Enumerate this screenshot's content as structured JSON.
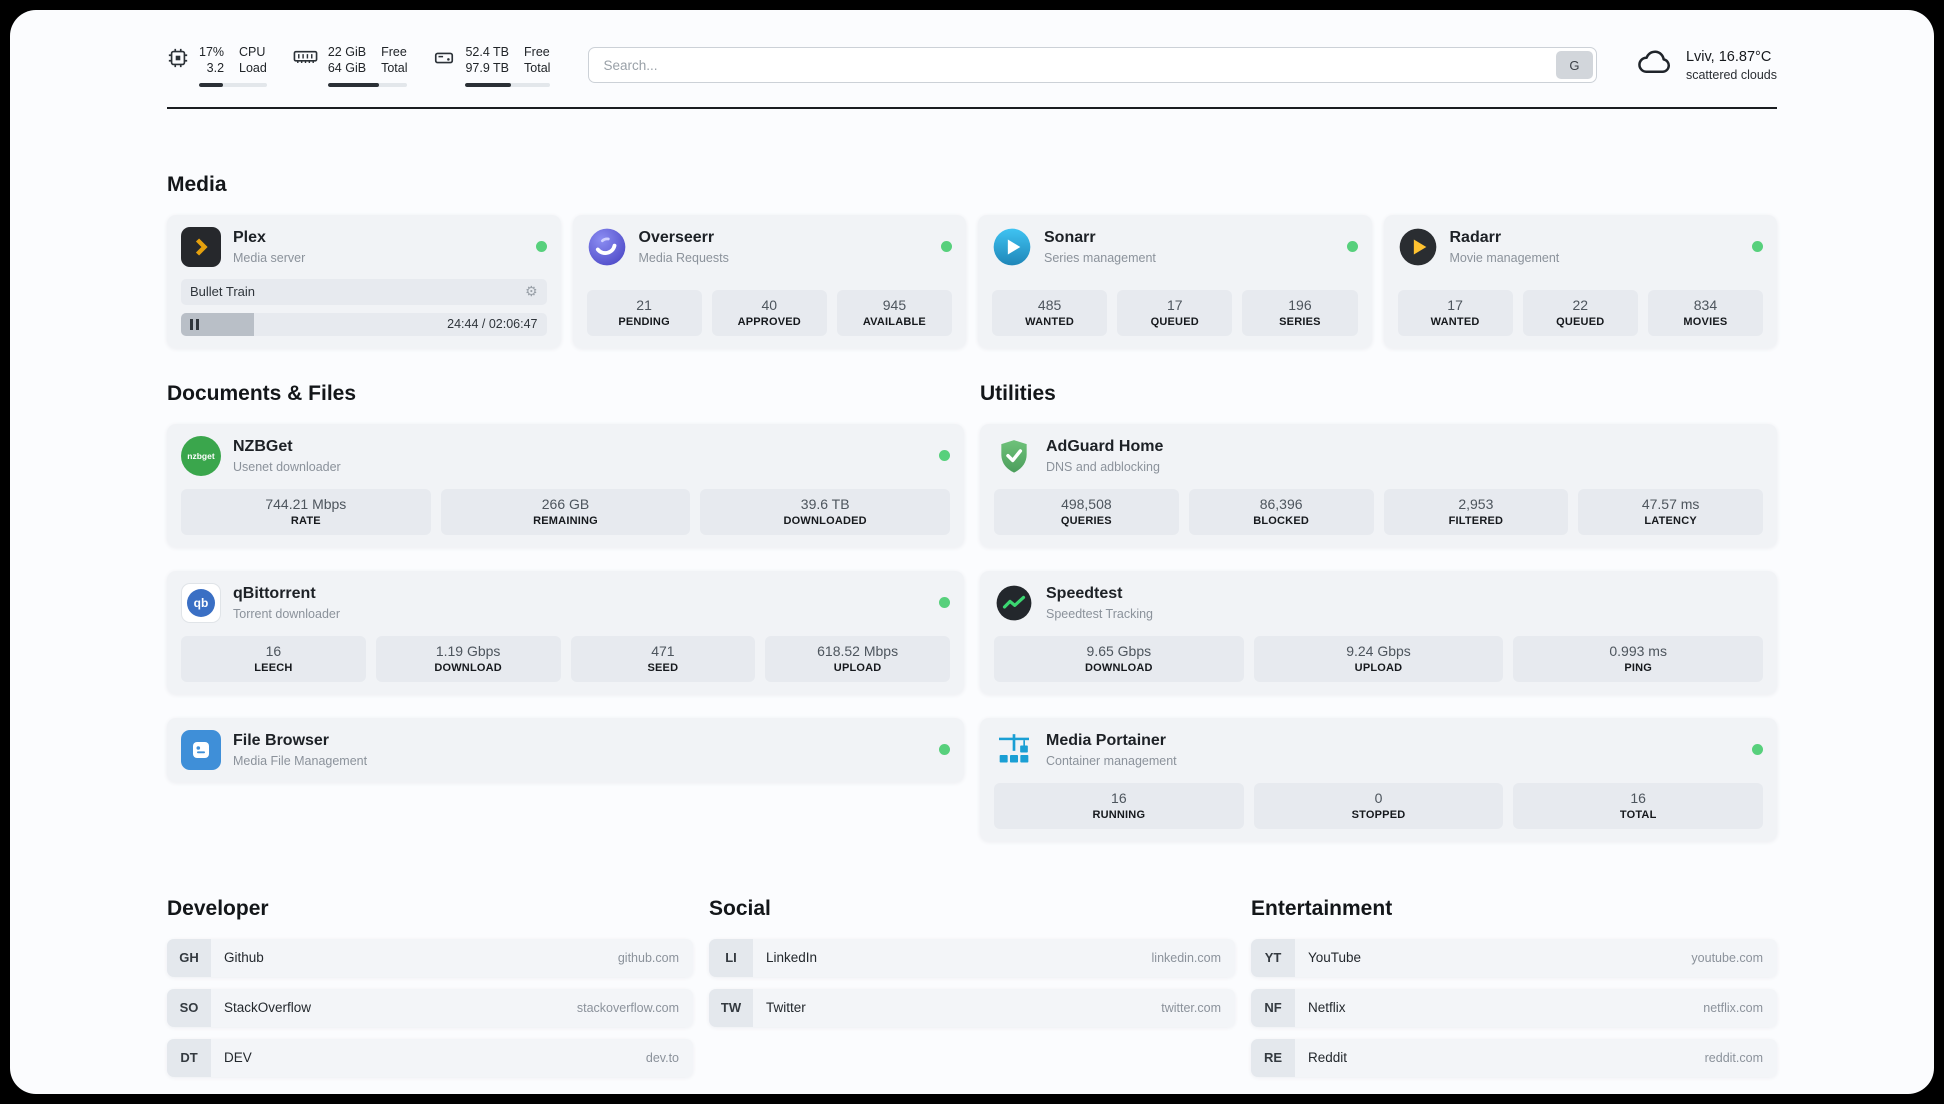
{
  "header": {
    "cpu": {
      "value_top": "17%",
      "value_bottom": "3.2",
      "label_top": "CPU",
      "label_bottom": "Load",
      "bar": "35%"
    },
    "ram": {
      "value_top": "22 GiB",
      "value_bottom": "64 GiB",
      "label_top": "Free",
      "label_bottom": "Total",
      "bar": "64%"
    },
    "disk": {
      "value_top": "52.4 TB",
      "value_bottom": "97.9 TB",
      "label_top": "Free",
      "label_bottom": "Total",
      "bar": "53%"
    },
    "search": {
      "placeholder": "Search...",
      "engine_button": "G"
    },
    "weather": {
      "location": "Lviv, 16.87°C",
      "condition": "scattered clouds"
    }
  },
  "media": {
    "heading": "Media",
    "plex": {
      "name": "Plex",
      "description": "Media server",
      "now_playing": "Bullet Train",
      "progress": "20%",
      "time": "24:44 / 02:06:47"
    },
    "overseerr": {
      "name": "Overseerr",
      "description": "Media Requests",
      "stats": [
        {
          "value": "21",
          "label": "PENDING"
        },
        {
          "value": "40",
          "label": "APPROVED"
        },
        {
          "value": "945",
          "label": "AVAILABLE"
        }
      ]
    },
    "sonarr": {
      "name": "Sonarr",
      "description": "Series management",
      "stats": [
        {
          "value": "485",
          "label": "WANTED"
        },
        {
          "value": "17",
          "label": "QUEUED"
        },
        {
          "value": "196",
          "label": "SERIES"
        }
      ]
    },
    "radarr": {
      "name": "Radarr",
      "description": "Movie management",
      "stats": [
        {
          "value": "17",
          "label": "WANTED"
        },
        {
          "value": "22",
          "label": "QUEUED"
        },
        {
          "value": "834",
          "label": "MOVIES"
        }
      ]
    }
  },
  "documents": {
    "heading": "Documents & Files",
    "nzbget": {
      "name": "NZBGet",
      "description": "Usenet downloader",
      "icon_text": "nzbget",
      "stats": [
        {
          "value": "744.21 Mbps",
          "label": "RATE"
        },
        {
          "value": "266 GB",
          "label": "REMAINING"
        },
        {
          "value": "39.6 TB",
          "label": "DOWNLOADED"
        }
      ]
    },
    "qbittorrent": {
      "name": "qBittorrent",
      "description": "Torrent downloader",
      "icon_text": "qb",
      "stats": [
        {
          "value": "16",
          "label": "LEECH"
        },
        {
          "value": "1.19 Gbps",
          "label": "DOWNLOAD"
        },
        {
          "value": "471",
          "label": "SEED"
        },
        {
          "value": "618.52 Mbps",
          "label": "UPLOAD"
        }
      ]
    },
    "filebrowser": {
      "name": "File Browser",
      "description": "Media File Management"
    }
  },
  "utilities": {
    "heading": "Utilities",
    "adguard": {
      "name": "AdGuard Home",
      "description": "DNS and adblocking",
      "stats": [
        {
          "value": "498,508",
          "label": "QUERIES"
        },
        {
          "value": "86,396",
          "label": "BLOCKED"
        },
        {
          "value": "2,953",
          "label": "FILTERED"
        },
        {
          "value": "47.57 ms",
          "label": "LATENCY"
        }
      ]
    },
    "speedtest": {
      "name": "Speedtest",
      "description": "Speedtest Tracking",
      "stats": [
        {
          "value": "9.65 Gbps",
          "label": "DOWNLOAD"
        },
        {
          "value": "9.24 Gbps",
          "label": "UPLOAD"
        },
        {
          "value": "0.993 ms",
          "label": "PING"
        }
      ]
    },
    "portainer": {
      "name": "Media Portainer",
      "description": "Container management",
      "stats": [
        {
          "value": "16",
          "label": "RUNNING"
        },
        {
          "value": "0",
          "label": "STOPPED"
        },
        {
          "value": "16",
          "label": "TOTAL"
        }
      ]
    }
  },
  "bookmarks": {
    "developer": {
      "heading": "Developer",
      "items": [
        {
          "abbr": "GH",
          "name": "Github",
          "url": "github.com"
        },
        {
          "abbr": "SO",
          "name": "StackOverflow",
          "url": "stackoverflow.com"
        },
        {
          "abbr": "DT",
          "name": "DEV",
          "url": "dev.to"
        }
      ]
    },
    "social": {
      "heading": "Social",
      "items": [
        {
          "abbr": "LI",
          "name": "LinkedIn",
          "url": "linkedin.com"
        },
        {
          "abbr": "TW",
          "name": "Twitter",
          "url": "twitter.com"
        }
      ]
    },
    "entertainment": {
      "heading": "Entertainment",
      "items": [
        {
          "abbr": "YT",
          "name": "YouTube",
          "url": "youtube.com"
        },
        {
          "abbr": "NF",
          "name": "Netflix",
          "url": "netflix.com"
        },
        {
          "abbr": "RE",
          "name": "Reddit",
          "url": "reddit.com"
        }
      ]
    }
  },
  "colors": {
    "status_green": "#57d07c",
    "plex_amber": "#e5a00d",
    "sonarr_blue": "#35c5f4",
    "radarr_amber": "#ffc230",
    "adguard_green": "#68bc71",
    "portainer_blue": "#1a9fd4",
    "overseerr_purple": "#5b5bd6",
    "qbittorrent_blue": "#3a6fc4",
    "nzbget_green": "#3aa64c",
    "filebrowser_blue": "#3f8fd8"
  }
}
